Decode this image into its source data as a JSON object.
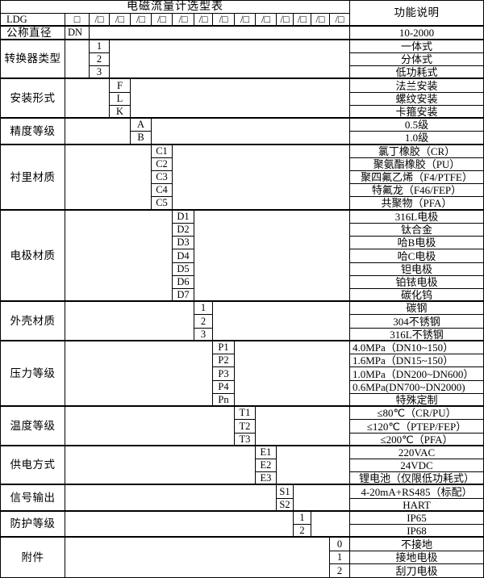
{
  "colors": {
    "border": "#000000",
    "text": "#000000",
    "background": "#ffffff"
  },
  "table": {
    "title": "电磁流量计选型表",
    "function_header": "功能说明",
    "model_prefix": "LDG",
    "model_box": "□",
    "model_slot": "/□",
    "slot_count": 13,
    "diameter": {
      "label": "公称直径",
      "code": "DN",
      "desc": "10-2000"
    },
    "sections": [
      {
        "label": "转换器类型",
        "col": 0,
        "rows": [
          {
            "code": "1",
            "desc": "一体式"
          },
          {
            "code": "2",
            "desc": "分体式"
          },
          {
            "code": "3",
            "desc": "低功耗式"
          }
        ]
      },
      {
        "label": "安装形式",
        "col": 1,
        "rows": [
          {
            "code": "F",
            "desc": "法兰安装"
          },
          {
            "code": "L",
            "desc": "螺纹安装"
          },
          {
            "code": "K",
            "desc": "卡箍安装"
          }
        ]
      },
      {
        "label": "精度等级",
        "col": 2,
        "rows": [
          {
            "code": "A",
            "desc": "0.5级"
          },
          {
            "code": "B",
            "desc": "1.0级"
          }
        ]
      },
      {
        "label": "衬里材质",
        "col": 3,
        "rows": [
          {
            "code": "C1",
            "desc": "氯丁橡胶（CR）"
          },
          {
            "code": "C2",
            "desc": "聚氨酯橡胶（PU）"
          },
          {
            "code": "C3",
            "desc": "聚四氟乙烯（F4/PTFE）"
          },
          {
            "code": "C4",
            "desc": "特氟龙（F46/FEP）"
          },
          {
            "code": "C5",
            "desc": "共聚物（PFA）"
          }
        ]
      },
      {
        "label": "电极材质",
        "col": 4,
        "rows": [
          {
            "code": "D1",
            "desc": "316L电极"
          },
          {
            "code": "D2",
            "desc": "钛合金"
          },
          {
            "code": "D3",
            "desc": "哈B电极"
          },
          {
            "code": "D4",
            "desc": "哈C电极"
          },
          {
            "code": "D5",
            "desc": "钽电极"
          },
          {
            "code": "D6",
            "desc": "铂铱电极"
          },
          {
            "code": "D7",
            "desc": "碳化钨"
          }
        ]
      },
      {
        "label": "外壳材质",
        "col": 5,
        "rows": [
          {
            "code": "1",
            "desc": "碳钢"
          },
          {
            "code": "2",
            "desc": "304不锈钢"
          },
          {
            "code": "3",
            "desc": "316L不锈钢"
          }
        ]
      },
      {
        "label": "压力等级",
        "col": 6,
        "rows": [
          {
            "code": "P1",
            "desc": "4.0MPa（DN10~150）",
            "align": "left"
          },
          {
            "code": "P2",
            "desc": "1.6MPa（DN15~150）",
            "align": "left"
          },
          {
            "code": "P3",
            "desc": "1.0MPa（DN200~DN600）",
            "align": "left"
          },
          {
            "code": "P4",
            "desc": "0.6MPa(DN700~DN2000)",
            "align": "left"
          },
          {
            "code": "Pn",
            "desc": "特殊定制"
          }
        ]
      },
      {
        "label": "温度等级",
        "col": 7,
        "rows": [
          {
            "code": "T1",
            "desc": "≤80℃（CR/PU）"
          },
          {
            "code": "T2",
            "desc": "≤120℃（PTEP/FEP）"
          },
          {
            "code": "T3",
            "desc": "≤200℃（PFA）"
          }
        ]
      },
      {
        "label": "供电方式",
        "col": 8,
        "rows": [
          {
            "code": "E1",
            "desc": "220VAC"
          },
          {
            "code": "E2",
            "desc": "24VDC"
          },
          {
            "code": "E3",
            "desc": "锂电池（仅限低功耗式）"
          }
        ]
      },
      {
        "label": "信号输出",
        "col": 9,
        "rows": [
          {
            "code": "S1",
            "desc": "4-20mA+RS485（标配）"
          },
          {
            "code": "S2",
            "desc": "HART"
          }
        ]
      },
      {
        "label": "防护等级",
        "col": 10,
        "rows": [
          {
            "code": "1",
            "desc": "IP65"
          },
          {
            "code": "2",
            "desc": "IP68"
          }
        ]
      },
      {
        "label": "附件",
        "col": 12,
        "rows": [
          {
            "code": "0",
            "desc": "不接地"
          },
          {
            "code": "1",
            "desc": "接地电极"
          },
          {
            "code": "2",
            "desc": "刮刀电极"
          }
        ]
      }
    ]
  }
}
